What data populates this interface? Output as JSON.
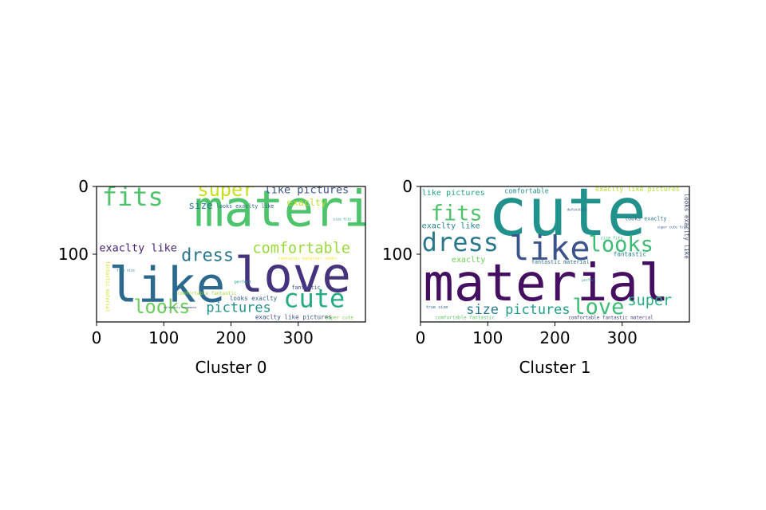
{
  "chart_data": [
    {
      "type": "wordcloud",
      "xlabel": "Cluster 0",
      "xticks": [
        0,
        100,
        200,
        300
      ],
      "yticks": [
        0,
        100
      ],
      "xlim": [
        0,
        400
      ],
      "ylim": [
        200,
        0
      ],
      "words": [
        {
          "text": "material",
          "x": 145,
          "y": 58,
          "size": 74,
          "color": "#4dc36b"
        },
        {
          "text": "like",
          "x": 18,
          "y": 170,
          "size": 72,
          "color": "#2c6a8d"
        },
        {
          "text": "love",
          "x": 205,
          "y": 155,
          "size": 72,
          "color": "#46337e"
        },
        {
          "text": "fits",
          "x": 8,
          "y": 28,
          "size": 38,
          "color": "#4ec36b"
        },
        {
          "text": "super",
          "x": 150,
          "y": 14,
          "size": 28,
          "color": "#c8e020"
        },
        {
          "text": "like pictures",
          "x": 250,
          "y": 10,
          "size": 16,
          "color": "#3b528b"
        },
        {
          "text": "size",
          "x": 137,
          "y": 33,
          "size": 15,
          "color": "#2a788e"
        },
        {
          "text": "exaclty",
          "x": 283,
          "y": 28,
          "size": 14,
          "color": "#b5de2b"
        },
        {
          "text": "looks exaclty like",
          "x": 178,
          "y": 32,
          "size": 8,
          "color": "#31688e"
        },
        {
          "text": "comfortable",
          "x": 232,
          "y": 98,
          "size": 22,
          "color": "#9ad93c"
        },
        {
          "text": "exaclty like",
          "x": 4,
          "y": 96,
          "size": 16,
          "color": "#482475"
        },
        {
          "text": "dress",
          "x": 126,
          "y": 110,
          "size": 26,
          "color": "#2a788e"
        },
        {
          "text": "cute",
          "x": 278,
          "y": 178,
          "size": 38,
          "color": "#25ab82"
        },
        {
          "text": "looks",
          "x": 55,
          "y": 187,
          "size": 28,
          "color": "#6ccd5a"
        },
        {
          "text": "pictures",
          "x": 163,
          "y": 185,
          "size": 20,
          "color": "#21918c"
        },
        {
          "text": "fantastic",
          "x": 290,
          "y": 152,
          "size": 8,
          "color": "#3e4a89"
        },
        {
          "text": "looks exaclty",
          "x": 198,
          "y": 168,
          "size": 9,
          "color": "#355f8d"
        },
        {
          "text": "exaclty like pictures",
          "x": 236,
          "y": 196,
          "size": 9,
          "color": "#3b528b"
        },
        {
          "text": "comfortable fantastic",
          "x": 120,
          "y": 160,
          "size": 7,
          "color": "#a0da39"
        },
        {
          "text": "fantastic material",
          "x": 14,
          "y": 110,
          "size": 7,
          "color": "#d2e21b",
          "rotate": 90
        },
        {
          "text": "super cute",
          "x": 340,
          "y": 196,
          "size": 7,
          "color": "#7ad151"
        },
        {
          "text": "true size",
          "x": 30,
          "y": 125,
          "size": 5,
          "color": "#26828e"
        },
        {
          "text": "size fits",
          "x": 352,
          "y": 50,
          "size": 5,
          "color": "#20a486"
        },
        {
          "text": "fantastic material looks",
          "x": 270,
          "y": 108,
          "size": 6,
          "color": "#fde725"
        },
        {
          "text": "definitely recommend",
          "x": 100,
          "y": 180,
          "size": 4,
          "color": "#3e4989"
        },
        {
          "text": "perfect",
          "x": 205,
          "y": 143,
          "size": 6,
          "color": "#1fa187"
        }
      ]
    },
    {
      "type": "wordcloud",
      "xlabel": "Cluster 1",
      "xticks": [
        0,
        100,
        200,
        300
      ],
      "yticks": [
        0,
        100
      ],
      "xlim": [
        0,
        400
      ],
      "ylim": [
        200,
        0
      ],
      "words": [
        {
          "text": "cute",
          "x": 100,
          "y": 72,
          "size": 98,
          "color": "#21918c"
        },
        {
          "text": "material",
          "x": 4,
          "y": 168,
          "size": 76,
          "color": "#440f60"
        },
        {
          "text": "like",
          "x": 132,
          "y": 108,
          "size": 50,
          "color": "#3b528b"
        },
        {
          "text": "dress",
          "x": 2,
          "y": 95,
          "size": 38,
          "color": "#2a788e"
        },
        {
          "text": "fits",
          "x": 15,
          "y": 50,
          "size": 32,
          "color": "#4ec36b"
        },
        {
          "text": "looks",
          "x": 250,
          "y": 96,
          "size": 32,
          "color": "#3dbc74"
        },
        {
          "text": "love",
          "x": 226,
          "y": 188,
          "size": 32,
          "color": "#3dbc74"
        },
        {
          "text": "super",
          "x": 308,
          "y": 175,
          "size": 22,
          "color": "#29af7f"
        },
        {
          "text": "size",
          "x": 68,
          "y": 188,
          "size": 20,
          "color": "#2a788e"
        },
        {
          "text": "pictures",
          "x": 126,
          "y": 188,
          "size": 20,
          "color": "#1f9e89"
        },
        {
          "text": "like pictures",
          "x": 2,
          "y": 13,
          "size": 12,
          "color": "#20a486"
        },
        {
          "text": "comfortable",
          "x": 125,
          "y": 10,
          "size": 10,
          "color": "#21918c"
        },
        {
          "text": "exaclty like pictures",
          "x": 260,
          "y": 7,
          "size": 10,
          "color": "#b5de2b"
        },
        {
          "text": "exaclty like",
          "x": 2,
          "y": 62,
          "size": 12,
          "color": "#25848e"
        },
        {
          "text": "exaclty",
          "x": 46,
          "y": 112,
          "size": 12,
          "color": "#6ccd5a"
        },
        {
          "text": "fantastic",
          "x": 287,
          "y": 103,
          "size": 9,
          "color": "#26828e"
        },
        {
          "text": "fantastic material",
          "x": 165,
          "y": 114,
          "size": 8,
          "color": "#306a8e"
        },
        {
          "text": "looks exaclty like",
          "x": 393,
          "y": 10,
          "size": 9,
          "color": "#3e4989",
          "rotate": 90
        },
        {
          "text": "looks exaclty",
          "x": 304,
          "y": 50,
          "size": 8,
          "color": "#2c728e"
        },
        {
          "text": "comfortable fantastic material",
          "x": 220,
          "y": 196,
          "size": 7,
          "color": "#433e85"
        },
        {
          "text": "comfortable fantastic",
          "x": 22,
          "y": 196,
          "size": 7,
          "color": "#5ec962"
        },
        {
          "text": "true size",
          "x": 8,
          "y": 180,
          "size": 6,
          "color": "#31688e"
        },
        {
          "text": "super cute fits",
          "x": 352,
          "y": 62,
          "size": 5,
          "color": "#355f8d"
        },
        {
          "text": "definitely",
          "x": 218,
          "y": 36,
          "size": 5,
          "color": "#38588c"
        },
        {
          "text": "perfect",
          "x": 240,
          "y": 140,
          "size": 5,
          "color": "#1f988b"
        },
        {
          "text": "size fits",
          "x": 268,
          "y": 78,
          "size": 6,
          "color": "#29af7f"
        }
      ]
    }
  ]
}
